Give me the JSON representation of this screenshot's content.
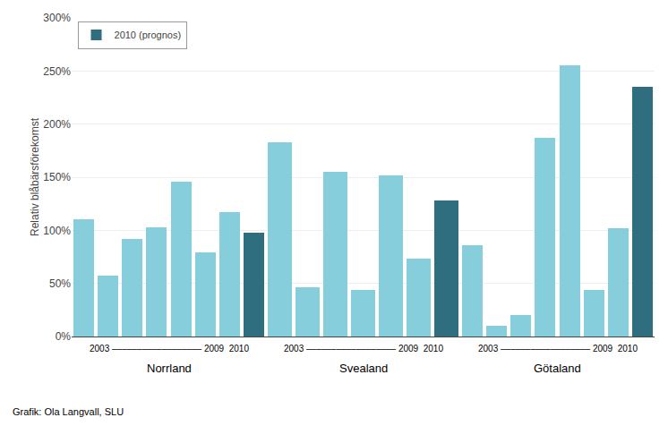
{
  "chart_data": [
    {
      "type": "bar",
      "xlabel": "Norrland",
      "ylabel": "Relativ blåbärsförekomst",
      "annotations": [
        "2003 –––––––––––––––––– 2009  2010"
      ],
      "footer": "Grafik: Ola Langvall, SLU",
      "categories": [
        null,
        null,
        null,
        null,
        null,
        null,
        null,
        null
      ],
      "series": [
        {
          "color": "#87CEDC",
          "values": [
            1.1,
            0.57,
            0.92,
            1.03,
            1.46,
            0.79,
            1.17,
            null
          ]
        },
        {
          "name": "2010 (prognos)",
          "color": "#2E6E7E",
          "values": [
            null,
            null,
            null,
            null,
            null,
            null,
            null,
            0.98
          ]
        }
      ],
      "stacked": true,
      "ylim": [
        0,
        3.0
      ],
      "yticks": [
        {
          "value": 0.0,
          "label": "0%"
        },
        {
          "value": 0.5,
          "label": "50%"
        },
        {
          "value": 1.0,
          "label": "100%"
        },
        {
          "value": 1.5,
          "label": "150%"
        },
        {
          "value": 2.0,
          "label": "200%"
        },
        {
          "value": 2.5,
          "label": "250%"
        },
        {
          "value": 3.0,
          "label": "300%"
        }
      ],
      "grid": true,
      "tick_labels": "y",
      "legend": "upper left"
    },
    {
      "type": "bar",
      "xlabel": "Svealand",
      "annotations": [
        "2003 –––––––––––––––––– 2009  2010"
      ],
      "categories": [
        null,
        null,
        null,
        null,
        null,
        null,
        null
      ],
      "series": [
        {
          "color": "#87CEDC",
          "values": [
            1.83,
            0.46,
            1.55,
            0.44,
            1.52,
            0.73,
            null
          ]
        },
        {
          "name": "2010 (prognos)",
          "color": "#2E6E7E",
          "values": [
            null,
            null,
            null,
            null,
            null,
            null,
            1.28
          ]
        }
      ],
      "stacked": true,
      "ylim": [
        0,
        3.0
      ],
      "yticks": [
        0.0,
        0.5,
        1.0,
        1.5,
        2.0,
        2.5,
        3.0
      ],
      "grid": true,
      "tick_labels": false
    },
    {
      "type": "bar",
      "xlabel": "Götaland",
      "annotations": [
        "2003 –––––––––––––––––– 2009  2010"
      ],
      "categories": [
        null,
        null,
        null,
        null,
        null,
        null,
        null,
        null
      ],
      "series": [
        {
          "color": "#87CEDC",
          "values": [
            0.86,
            0.1,
            0.2,
            1.87,
            2.55,
            0.44,
            1.02,
            null
          ]
        },
        {
          "name": "2010 (prognos)",
          "color": "#2E6E7E",
          "values": [
            null,
            null,
            null,
            null,
            null,
            null,
            null,
            2.35
          ]
        }
      ],
      "stacked": true,
      "ylim": [
        0,
        3.0
      ],
      "yticks": [
        0.0,
        0.5,
        1.0,
        1.5,
        2.0,
        2.5,
        3.0
      ],
      "grid": true,
      "tick_labels": false
    }
  ]
}
